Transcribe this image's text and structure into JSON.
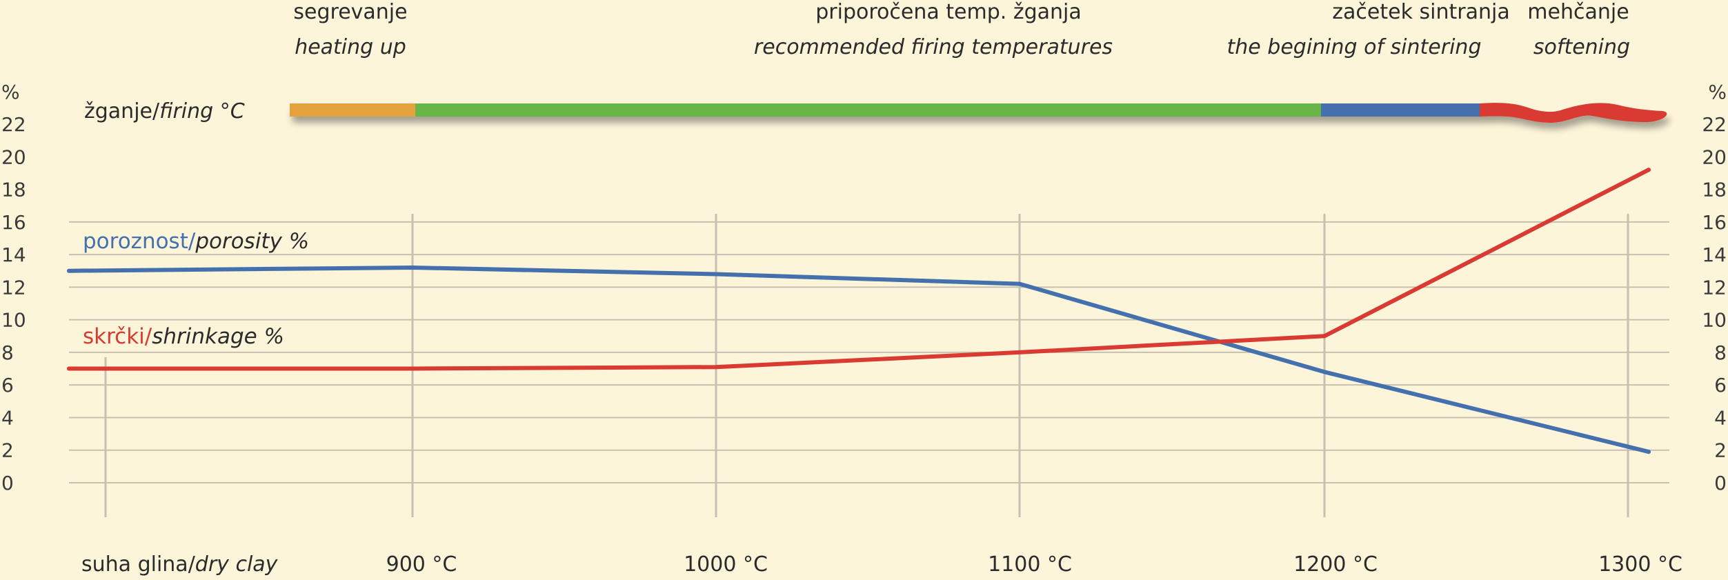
{
  "phases": [
    {
      "label": "segrevanje",
      "sub": "heating up"
    },
    {
      "label": "priporočena temp. žganja",
      "sub": "recommended firing temperatures"
    },
    {
      "label": "začetek sintranja",
      "sub": "the begining of sintering"
    },
    {
      "label": "mehčanje",
      "sub": "softening"
    }
  ],
  "firing_label": {
    "main": "žganje/",
    "italic": "firing °C"
  },
  "firing_bar_colors": {
    "heating": "#e3a23e",
    "recommended": "#6ab547",
    "sintering": "#4470ad",
    "softening": "#d93a32"
  },
  "chart_data": {
    "type": "line",
    "x_categories": [
      "suha glina/dry clay",
      "900 °C",
      "1000 °C",
      "1100 °C",
      "1200 °C",
      "1300 °C"
    ],
    "x_label_parts": [
      {
        "main": "suha glina/",
        "italic": "dry clay"
      },
      {
        "main": "900 °C",
        "italic": ""
      },
      {
        "main": "1000 °C",
        "italic": ""
      },
      {
        "main": "1100 °C",
        "italic": ""
      },
      {
        "main": "1200 °C",
        "italic": ""
      },
      {
        "main": "1300 °C",
        "italic": ""
      }
    ],
    "y_unit": "%",
    "y_ticks": [
      22,
      20,
      18,
      16,
      14,
      12,
      10,
      8,
      6,
      4,
      2,
      0
    ],
    "ylim": [
      0,
      22
    ],
    "grid": true,
    "series": [
      {
        "name": "poroznost/porosity %",
        "name_main": "poroznost/",
        "name_italic": "porosity %",
        "color": "#4470ad",
        "points": [
          [
            0,
            13.0
          ],
          [
            1,
            13.2
          ],
          [
            2,
            12.8
          ],
          [
            3,
            12.2
          ],
          [
            4,
            6.8
          ],
          [
            5,
            1.9
          ]
        ]
      },
      {
        "name": "skrčki/shrinkage %",
        "name_main": "skrčki/",
        "name_italic": "shrinkage %",
        "color": "#d93a32",
        "points": [
          [
            0,
            7.0
          ],
          [
            1,
            7.0
          ],
          [
            2,
            7.1
          ],
          [
            3,
            8.0
          ],
          [
            4,
            9.0
          ],
          [
            5,
            19.2
          ]
        ]
      }
    ]
  }
}
